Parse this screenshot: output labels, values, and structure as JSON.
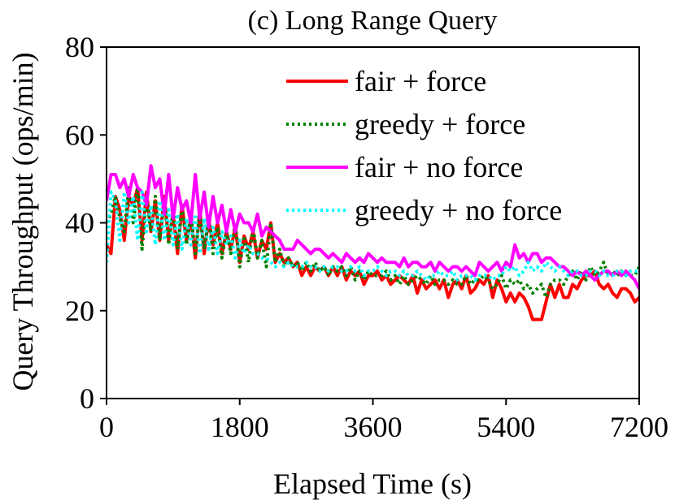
{
  "chart_data": {
    "type": "line",
    "title": "(c) Long Range Query",
    "xlabel": "Elapsed Time (s)",
    "ylabel": "Query Throughput (ops/min)",
    "xlim": [
      0,
      7200
    ],
    "ylim": [
      0,
      80
    ],
    "xticks": [
      0,
      1800,
      3600,
      5400,
      7200
    ],
    "yticks": [
      0,
      20,
      40,
      60,
      80
    ],
    "xtick_labels": [
      "0",
      "1800",
      "3600",
      "5400",
      "7200"
    ],
    "ytick_labels": [
      "0",
      "20",
      "40",
      "60",
      "80"
    ],
    "legend_position": "top-right",
    "grid": false,
    "series": [
      {
        "name": "fair + force",
        "color": "#ff0000",
        "style": "solid",
        "x": [
          0,
          60,
          120,
          180,
          240,
          300,
          360,
          420,
          480,
          540,
          600,
          660,
          720,
          780,
          840,
          900,
          960,
          1020,
          1080,
          1140,
          1200,
          1260,
          1320,
          1380,
          1440,
          1500,
          1560,
          1620,
          1680,
          1740,
          1800,
          1860,
          1920,
          1980,
          2040,
          2100,
          2160,
          2220,
          2280,
          2340,
          2400,
          2460,
          2520,
          2580,
          2640,
          2700,
          2760,
          2820,
          2880,
          2940,
          3000,
          3060,
          3120,
          3180,
          3240,
          3300,
          3360,
          3420,
          3480,
          3540,
          3600,
          3660,
          3720,
          3780,
          3840,
          3900,
          3960,
          4020,
          4080,
          4140,
          4200,
          4260,
          4320,
          4380,
          4440,
          4500,
          4560,
          4620,
          4680,
          4740,
          4800,
          4860,
          4920,
          4980,
          5040,
          5100,
          5160,
          5220,
          5280,
          5340,
          5400,
          5460,
          5520,
          5580,
          5640,
          5700,
          5760,
          5820,
          5880,
          5940,
          6000,
          6060,
          6120,
          6180,
          6240,
          6300,
          6360,
          6420,
          6480,
          6540,
          6600,
          6660,
          6720,
          6780,
          6840,
          6900,
          6960,
          7020,
          7080,
          7140,
          7200
        ],
        "values": [
          35,
          33,
          46,
          43,
          36,
          46,
          44,
          48,
          36,
          47,
          38,
          45,
          36,
          46,
          36,
          42,
          33,
          44,
          36,
          41,
          32,
          43,
          33,
          41,
          35,
          40,
          33,
          38,
          34,
          39,
          31,
          37,
          34,
          38,
          32,
          36,
          34,
          40,
          31,
          33,
          31,
          32,
          30,
          31,
          28,
          30,
          28,
          30,
          29,
          30,
          28,
          30,
          28,
          30,
          27,
          29,
          28,
          29,
          26,
          28,
          28,
          29,
          27,
          28,
          26,
          27,
          28,
          27,
          26,
          28,
          24,
          27,
          25,
          26,
          27,
          25,
          27,
          23,
          26,
          27,
          25,
          28,
          24,
          25,
          27,
          26,
          28,
          23,
          27,
          25,
          22,
          24,
          22,
          24,
          23,
          21,
          18,
          18,
          18,
          22,
          26,
          23,
          26,
          23,
          23,
          26,
          25,
          27,
          28,
          28,
          29,
          26,
          25,
          26,
          24,
          23,
          25,
          25,
          24,
          22,
          23
        ],
        "label_position": "legend"
      },
      {
        "name": "greedy + force",
        "color": "#008000",
        "style": "dotted",
        "x": [
          0,
          60,
          120,
          180,
          240,
          300,
          360,
          420,
          480,
          540,
          600,
          660,
          720,
          780,
          840,
          900,
          960,
          1020,
          1080,
          1140,
          1200,
          1260,
          1320,
          1380,
          1440,
          1500,
          1560,
          1620,
          1680,
          1740,
          1800,
          1860,
          1920,
          1980,
          2040,
          2100,
          2160,
          2220,
          2280,
          2340,
          2400,
          2460,
          2520,
          2580,
          2640,
          2700,
          2760,
          2820,
          2880,
          2940,
          3000,
          3060,
          3120,
          3180,
          3240,
          3300,
          3360,
          3420,
          3480,
          3540,
          3600,
          3660,
          3720,
          3780,
          3840,
          3900,
          3960,
          4020,
          4080,
          4140,
          4200,
          4260,
          4320,
          4380,
          4440,
          4500,
          4560,
          4620,
          4680,
          4740,
          4800,
          4860,
          4920,
          4980,
          5040,
          5100,
          5160,
          5220,
          5280,
          5340,
          5400,
          5460,
          5520,
          5580,
          5640,
          5700,
          5760,
          5820,
          5880,
          5940,
          6000,
          6060,
          6120,
          6180,
          6240,
          6300,
          6360,
          6420,
          6480,
          6540,
          6600,
          6660,
          6720,
          6780,
          6840,
          6900,
          6960,
          7020,
          7080,
          7140,
          7200
        ],
        "values": [
          40,
          42,
          46,
          41,
          38,
          48,
          40,
          48,
          34,
          46,
          38,
          46,
          36,
          45,
          35,
          43,
          34,
          44,
          35,
          42,
          33,
          42,
          34,
          41,
          33,
          39,
          32,
          38,
          33,
          40,
          30,
          37,
          31,
          39,
          32,
          36,
          30,
          40,
          31,
          34,
          30,
          32,
          30,
          31,
          29,
          31,
          29,
          31,
          29,
          30,
          28,
          30,
          29,
          30,
          28,
          30,
          27,
          29,
          27,
          29,
          28,
          28,
          28,
          29,
          27,
          28,
          26,
          28,
          26,
          27,
          28,
          27,
          26,
          28,
          26,
          27,
          27,
          26,
          27,
          26,
          26,
          28,
          26,
          27,
          27,
          28,
          27,
          25,
          26,
          28,
          25,
          27,
          26,
          27,
          25,
          26,
          24,
          25,
          26,
          23,
          26,
          27,
          27,
          26,
          28,
          29,
          27,
          29,
          27,
          30,
          28,
          29,
          31,
          28,
          29,
          28,
          29,
          28,
          28,
          28,
          30
        ],
        "label_position": "legend"
      },
      {
        "name": "fair + no force",
        "color": "#ff00ff",
        "style": "solid",
        "x": [
          0,
          60,
          120,
          180,
          240,
          300,
          360,
          420,
          480,
          540,
          600,
          660,
          720,
          780,
          840,
          900,
          960,
          1020,
          1080,
          1140,
          1200,
          1260,
          1320,
          1380,
          1440,
          1500,
          1560,
          1620,
          1680,
          1740,
          1800,
          1860,
          1920,
          1980,
          2040,
          2100,
          2160,
          2220,
          2280,
          2340,
          2400,
          2460,
          2520,
          2580,
          2640,
          2700,
          2760,
          2820,
          2880,
          2940,
          3000,
          3060,
          3120,
          3180,
          3240,
          3300,
          3360,
          3420,
          3480,
          3540,
          3600,
          3660,
          3720,
          3780,
          3840,
          3900,
          3960,
          4020,
          4080,
          4140,
          4200,
          4260,
          4320,
          4380,
          4440,
          4500,
          4560,
          4620,
          4680,
          4740,
          4800,
          4860,
          4920,
          4980,
          5040,
          5100,
          5160,
          5220,
          5280,
          5340,
          5400,
          5460,
          5520,
          5580,
          5640,
          5700,
          5760,
          5820,
          5880,
          5940,
          6000,
          6060,
          6120,
          6180,
          6240,
          6300,
          6360,
          6420,
          6480,
          6540,
          6600,
          6660,
          6720,
          6780,
          6840,
          6900,
          6960,
          7020,
          7080,
          7140,
          7200
        ],
        "values": [
          45,
          51,
          51,
          48,
          50,
          46,
          51,
          48,
          47,
          44,
          53,
          48,
          50,
          42,
          51,
          41,
          48,
          43,
          45,
          40,
          51,
          41,
          47,
          39,
          46,
          40,
          44,
          38,
          43,
          38,
          42,
          40,
          40,
          38,
          42,
          37,
          39,
          38,
          37,
          36,
          34,
          34,
          34,
          36,
          35,
          34,
          33,
          34,
          34,
          33,
          32,
          33,
          32,
          31,
          33,
          32,
          31,
          32,
          31,
          33,
          32,
          31,
          32,
          31,
          31,
          31,
          30,
          32,
          30,
          31,
          31,
          30,
          30,
          31,
          29,
          31,
          30,
          29,
          30,
          30,
          29,
          30,
          29,
          28,
          31,
          30,
          29,
          30,
          31,
          29,
          31,
          30,
          35,
          32,
          33,
          31,
          33,
          33,
          31,
          32,
          32,
          31,
          30,
          30,
          29,
          28,
          29,
          28,
          29,
          28,
          27,
          28,
          29,
          29,
          28,
          29,
          28,
          29,
          28,
          27,
          25
        ],
        "label_position": "legend"
      },
      {
        "name": "greedy + no force",
        "color": "#00ffff",
        "style": "dotted",
        "x": [
          0,
          60,
          120,
          180,
          240,
          300,
          360,
          420,
          480,
          540,
          600,
          660,
          720,
          780,
          840,
          900,
          960,
          1020,
          1080,
          1140,
          1200,
          1260,
          1320,
          1380,
          1440,
          1500,
          1560,
          1620,
          1680,
          1740,
          1800,
          1860,
          1920,
          1980,
          2040,
          2100,
          2160,
          2220,
          2280,
          2340,
          2400,
          2460,
          2520,
          2580,
          2640,
          2700,
          2760,
          2820,
          2880,
          2940,
          3000,
          3060,
          3120,
          3180,
          3240,
          3300,
          3360,
          3420,
          3480,
          3540,
          3600,
          3660,
          3720,
          3780,
          3840,
          3900,
          3960,
          4020,
          4080,
          4140,
          4200,
          4260,
          4320,
          4380,
          4440,
          4500,
          4560,
          4620,
          4680,
          4740,
          4800,
          4860,
          4920,
          4980,
          5040,
          5100,
          5160,
          5220,
          5280,
          5340,
          5400,
          5460,
          5520,
          5580,
          5640,
          5700,
          5760,
          5820,
          5880,
          5940,
          6000,
          6060,
          6120,
          6180,
          6240,
          6300,
          6360,
          6420,
          6480,
          6540,
          6600,
          6660,
          6720,
          6780,
          6840,
          6900,
          6960,
          7020,
          7080,
          7140,
          7200
        ],
        "values": [
          31,
          47,
          45,
          36,
          47,
          40,
          46,
          36,
          47,
          38,
          44,
          35,
          45,
          36,
          43,
          35,
          42,
          34,
          41,
          35,
          42,
          33,
          41,
          34,
          39,
          33,
          38,
          35,
          37,
          32,
          36,
          33,
          35,
          33,
          33,
          32,
          32,
          31,
          30,
          31,
          30,
          31,
          30,
          30,
          30,
          31,
          30,
          30,
          29,
          30,
          29,
          30,
          30,
          29,
          29,
          30,
          29,
          30,
          28,
          29,
          29,
          30,
          29,
          28,
          29,
          29,
          28,
          29,
          28,
          28,
          29,
          28,
          27,
          28,
          28,
          29,
          28,
          28,
          29,
          27,
          28,
          28,
          28,
          27,
          28,
          28,
          28,
          27,
          28,
          28,
          30,
          29,
          30,
          28,
          29,
          31,
          29,
          30,
          29,
          31,
          30,
          29,
          30,
          29,
          28,
          29,
          29,
          28,
          28,
          29,
          29,
          28,
          29,
          28,
          28,
          29,
          29,
          28,
          29,
          29,
          29
        ],
        "label_position": "legend"
      }
    ]
  }
}
